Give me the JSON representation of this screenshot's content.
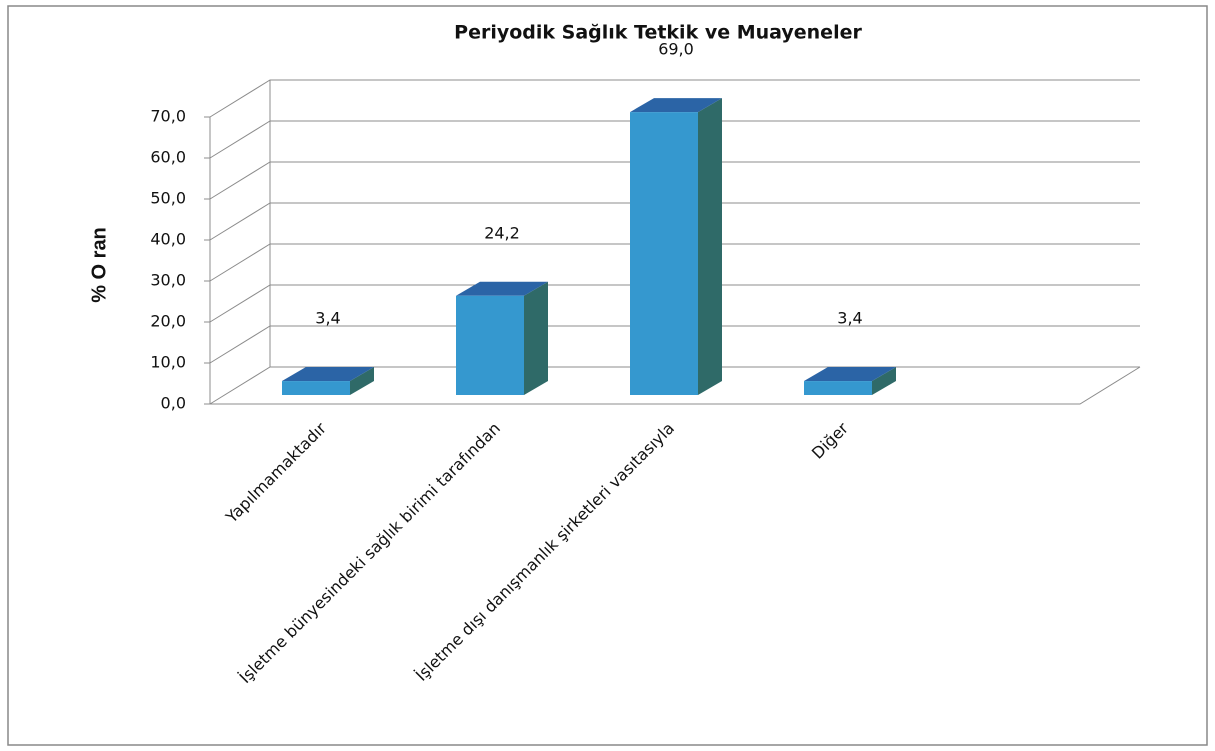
{
  "chart_data": {
    "type": "bar3d",
    "title": "Periyodik Sağlık Tetkik ve Muayeneler",
    "y_label": "% O ran",
    "categories": [
      "Yapılmamaktadır",
      "İşletme bünyesindeki sağlık birimi tarafından",
      "İşletme dışı danışmanlık şirketleri vasıtasıyla",
      "Diğer"
    ],
    "values": [
      3.4,
      24.2,
      69.0,
      3.4
    ],
    "value_labels": [
      "3,4",
      "24,2",
      "69,0",
      "3,4"
    ],
    "colors": {
      "front": "#3598cf",
      "top": "#2b64a6",
      "side": "#2f6a68"
    },
    "ylim": [
      0,
      70
    ],
    "yticks": [
      {
        "value": 0,
        "label": "0,0"
      },
      {
        "value": 10,
        "label": "10,0"
      },
      {
        "value": 20,
        "label": "20,0"
      },
      {
        "value": 30,
        "label": "30,0"
      },
      {
        "value": 40,
        "label": "40,0"
      },
      {
        "value": 50,
        "label": "50,0"
      },
      {
        "value": 60,
        "label": "60,0"
      },
      {
        "value": 70,
        "label": "70,0"
      }
    ],
    "grid": true
  }
}
